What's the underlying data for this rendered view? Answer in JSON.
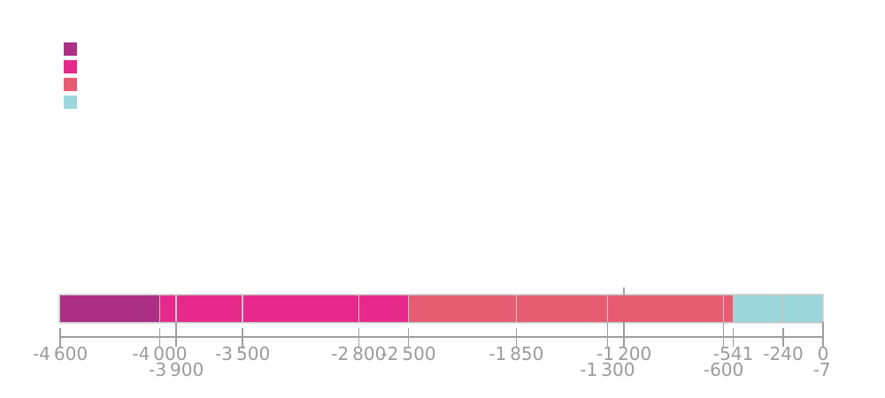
{
  "palette": {
    "purple": "#AC3084",
    "pink": "#E6298B",
    "salmon": "#E75C71",
    "lightblue": "#9BD7DB",
    "bar_border": "#C7C7C7",
    "divider": "#C7C7C7",
    "axis": "#9E9E9E",
    "label": "#9B9B9B",
    "marker": "#A5A5A5"
  },
  "legend": {
    "position": "top-left",
    "labels_visible": false,
    "swatches": [
      {
        "name": "legend-swatch-purple",
        "color_key": "purple"
      },
      {
        "name": "legend-swatch-pink",
        "color_key": "pink"
      },
      {
        "name": "legend-swatch-salmon",
        "color_key": "salmon"
      },
      {
        "name": "legend-swatch-lightblue",
        "color_key": "lightblue"
      }
    ]
  },
  "chart_data": {
    "type": "bar",
    "subtype": "timeline-period-bar",
    "orientation": "horizontal",
    "x_axis": {
      "min": -4600,
      "max": 0
    },
    "segments": [
      {
        "start": -4600,
        "end": -4000,
        "color_key": "purple"
      },
      {
        "start": -4000,
        "end": -3900,
        "color_key": "pink"
      },
      {
        "start": -3900,
        "end": -3500,
        "color_key": "pink"
      },
      {
        "start": -3500,
        "end": -2800,
        "color_key": "pink"
      },
      {
        "start": -2800,
        "end": -2500,
        "color_key": "pink"
      },
      {
        "start": -2500,
        "end": -1850,
        "color_key": "salmon"
      },
      {
        "start": -1850,
        "end": -1300,
        "color_key": "salmon"
      },
      {
        "start": -1300,
        "end": -600,
        "color_key": "salmon"
      },
      {
        "start": -600,
        "end": -541,
        "color_key": "salmon"
      },
      {
        "start": -541,
        "end": -240,
        "color_key": "lightblue"
      },
      {
        "start": -240,
        "end": -7,
        "color_key": "lightblue"
      }
    ],
    "event_marker": {
      "value": -1200
    },
    "ticks": [
      {
        "value": -4600,
        "label": "-4 600",
        "row": 1,
        "long": false
      },
      {
        "value": -4000,
        "label": "-4 000",
        "row": 1,
        "long": false
      },
      {
        "value": -3900,
        "label": "-3 900",
        "row": 2,
        "long": true
      },
      {
        "value": -3500,
        "label": "-3 500",
        "row": 1,
        "long": false
      },
      {
        "value": -2800,
        "label": "-2 800",
        "row": 1,
        "long": false
      },
      {
        "value": -2500,
        "label": "-2 500",
        "row": 1,
        "long": false
      },
      {
        "value": -1850,
        "label": "-1 850",
        "row": 1,
        "long": false
      },
      {
        "value": -1300,
        "label": "-1 300",
        "row": 2,
        "long": true
      },
      {
        "value": -1200,
        "label": "-1 200",
        "row": 1,
        "long": true
      },
      {
        "value": -600,
        "label": "-600",
        "row": 2,
        "long": true
      },
      {
        "value": -541,
        "label": "-541",
        "row": 1,
        "long": false
      },
      {
        "value": -240,
        "label": "-240",
        "row": 1,
        "long": false
      },
      {
        "value": 0,
        "label": "0",
        "row": 1,
        "long": true,
        "draw_line": true
      },
      {
        "value": -7,
        "label": "-7",
        "row": 2,
        "long": false,
        "draw_line": false
      }
    ]
  }
}
